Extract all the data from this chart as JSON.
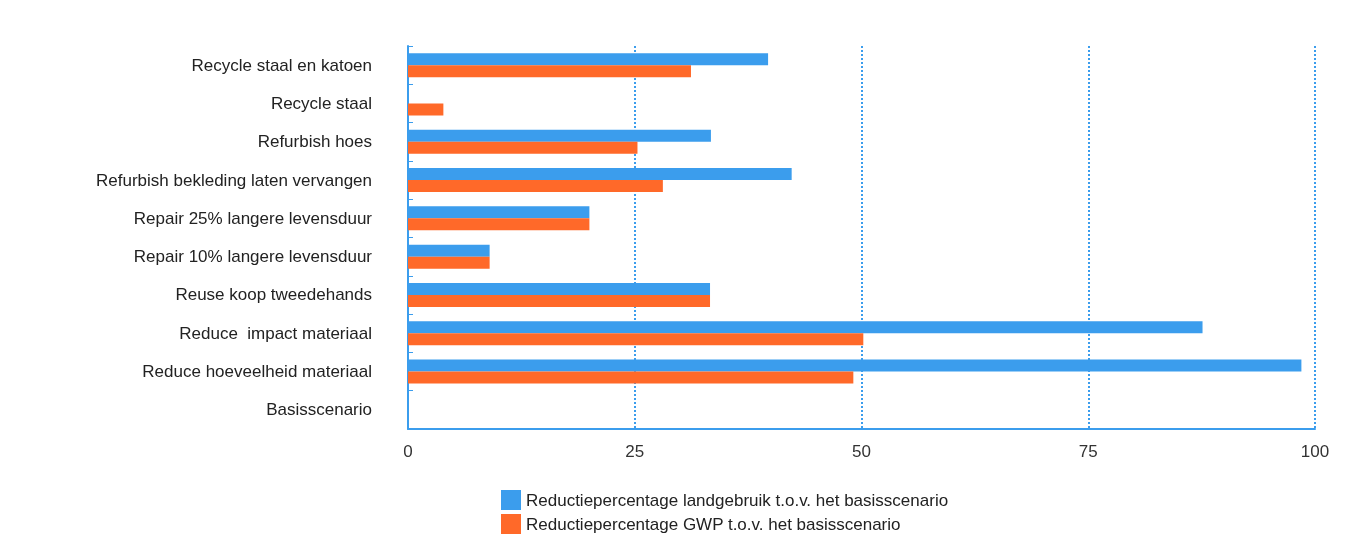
{
  "chart_data": {
    "type": "bar",
    "orientation": "horizontal",
    "categories": [
      "Recycle staal en katoen",
      "Recycle staal",
      "Refurbish hoes",
      "Refurbish bekleding laten vervangen",
      "Repair 25% langere levensduur",
      "Repair 10% langere levensduur",
      "Reuse koop tweedehands",
      "Reduce  impact materiaal",
      "Reduce hoeveelheid materiaal",
      "Basisscenario"
    ],
    "series": [
      {
        "name": "Reductiepercentage landgebruik t.o.v. het basisscenario",
        "color": "#3b9ded",
        "values": [
          39.7,
          null,
          33.4,
          42.3,
          20,
          9,
          33.3,
          87.6,
          98.5,
          0
        ]
      },
      {
        "name": "Reductiepercentage GWP t.o.v. het basisscenario",
        "color": "#ff6929",
        "values": [
          31.2,
          3.9,
          25.3,
          28.1,
          20,
          9,
          33.3,
          50.2,
          49.1,
          0
        ]
      }
    ],
    "xlim": [
      0,
      100
    ],
    "xticks": [
      0,
      25,
      50,
      75,
      100
    ],
    "grid": "x",
    "legend": "bottom"
  }
}
